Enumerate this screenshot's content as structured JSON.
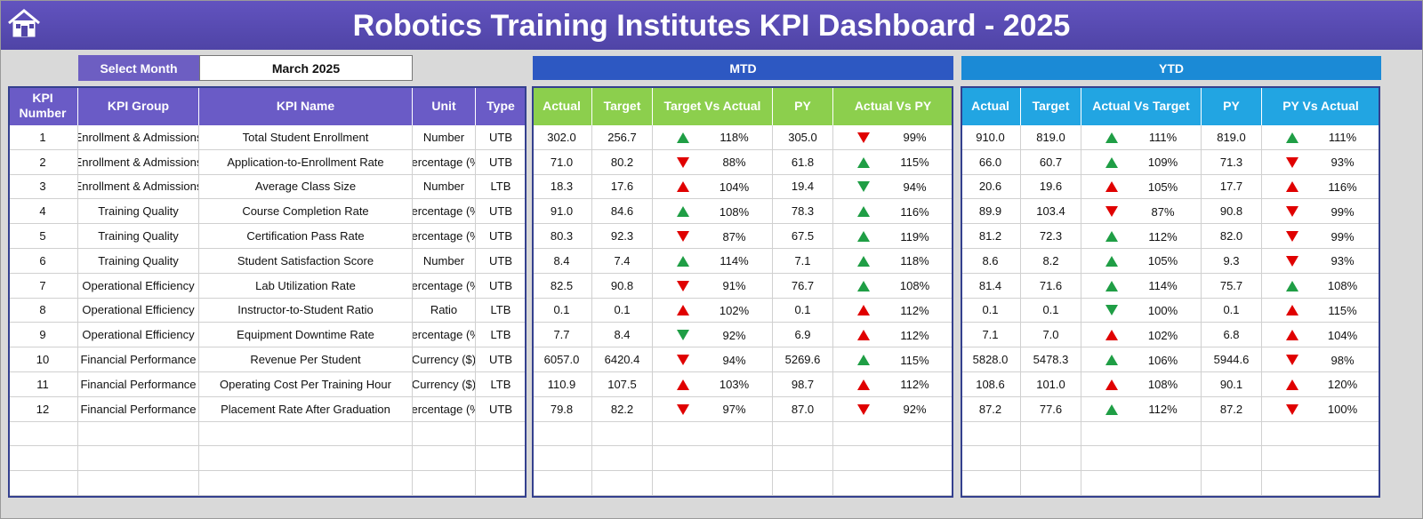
{
  "header": {
    "title": "Robotics Training Institutes KPI Dashboard - 2025"
  },
  "filter": {
    "label": "Select Month",
    "value": "March 2025"
  },
  "sections": {
    "mtd": "MTD",
    "ytd": "YTD"
  },
  "columns": {
    "kpi": [
      "KPI Number",
      "KPI Group",
      "KPI Name",
      "Unit",
      "Type"
    ],
    "mtd": [
      "Actual",
      "Target",
      "Target Vs Actual",
      "PY",
      "Actual Vs PY"
    ],
    "ytd": [
      "Actual",
      "Target",
      "Actual Vs Target",
      "PY",
      "PY Vs Actual"
    ]
  },
  "rows": [
    {
      "cells": [
        "1",
        "Enrollment & Admissions",
        "Total Student Enrollment",
        "Number",
        "UTB"
      ],
      "mtd": [
        "302.0",
        "256.7",
        {
          "label": "118%",
          "arrow": "up",
          "color": "#1f9e45"
        },
        "305.0",
        {
          "label": "99%",
          "arrow": "down",
          "color": "#e00000"
        }
      ],
      "ytd": [
        "910.0",
        "819.0",
        {
          "label": "111%",
          "arrow": "up",
          "color": "#1f9e45"
        },
        "819.0",
        {
          "label": "111%",
          "arrow": "up",
          "color": "#1f9e45"
        }
      ]
    },
    {
      "cells": [
        "2",
        "Enrollment & Admissions",
        "Application-to-Enrollment Rate",
        "Percentage (%)",
        "UTB"
      ],
      "mtd": [
        "71.0",
        "80.2",
        {
          "label": "88%",
          "arrow": "down",
          "color": "#e00000"
        },
        "61.8",
        {
          "label": "115%",
          "arrow": "up",
          "color": "#1f9e45"
        }
      ],
      "ytd": [
        "66.0",
        "60.7",
        {
          "label": "109%",
          "arrow": "up",
          "color": "#1f9e45"
        },
        "71.3",
        {
          "label": "93%",
          "arrow": "down",
          "color": "#e00000"
        }
      ]
    },
    {
      "cells": [
        "3",
        "Enrollment & Admissions",
        "Average Class Size",
        "Number",
        "LTB"
      ],
      "mtd": [
        "18.3",
        "17.6",
        {
          "label": "104%",
          "arrow": "up",
          "color": "#e00000"
        },
        "19.4",
        {
          "label": "94%",
          "arrow": "down",
          "color": "#1f9e45"
        }
      ],
      "ytd": [
        "20.6",
        "19.6",
        {
          "label": "105%",
          "arrow": "up",
          "color": "#e00000"
        },
        "17.7",
        {
          "label": "116%",
          "arrow": "up",
          "color": "#e00000"
        }
      ]
    },
    {
      "cells": [
        "4",
        "Training Quality",
        "Course Completion Rate",
        "Percentage (%)",
        "UTB"
      ],
      "mtd": [
        "91.0",
        "84.6",
        {
          "label": "108%",
          "arrow": "up",
          "color": "#1f9e45"
        },
        "78.3",
        {
          "label": "116%",
          "arrow": "up",
          "color": "#1f9e45"
        }
      ],
      "ytd": [
        "89.9",
        "103.4",
        {
          "label": "87%",
          "arrow": "down",
          "color": "#e00000"
        },
        "90.8",
        {
          "label": "99%",
          "arrow": "down",
          "color": "#e00000"
        }
      ]
    },
    {
      "cells": [
        "5",
        "Training Quality",
        "Certification Pass Rate",
        "Percentage (%)",
        "UTB"
      ],
      "mtd": [
        "80.3",
        "92.3",
        {
          "label": "87%",
          "arrow": "down",
          "color": "#e00000"
        },
        "67.5",
        {
          "label": "119%",
          "arrow": "up",
          "color": "#1f9e45"
        }
      ],
      "ytd": [
        "81.2",
        "72.3",
        {
          "label": "112%",
          "arrow": "up",
          "color": "#1f9e45"
        },
        "82.0",
        {
          "label": "99%",
          "arrow": "down",
          "color": "#e00000"
        }
      ]
    },
    {
      "cells": [
        "6",
        "Training Quality",
        "Student Satisfaction Score",
        "Number",
        "UTB"
      ],
      "mtd": [
        "8.4",
        "7.4",
        {
          "label": "114%",
          "arrow": "up",
          "color": "#1f9e45"
        },
        "7.1",
        {
          "label": "118%",
          "arrow": "up",
          "color": "#1f9e45"
        }
      ],
      "ytd": [
        "8.6",
        "8.2",
        {
          "label": "105%",
          "arrow": "up",
          "color": "#1f9e45"
        },
        "9.3",
        {
          "label": "93%",
          "arrow": "down",
          "color": "#e00000"
        }
      ]
    },
    {
      "cells": [
        "7",
        "Operational Efficiency",
        "Lab Utilization Rate",
        "Percentage (%)",
        "UTB"
      ],
      "mtd": [
        "82.5",
        "90.8",
        {
          "label": "91%",
          "arrow": "down",
          "color": "#e00000"
        },
        "76.7",
        {
          "label": "108%",
          "arrow": "up",
          "color": "#1f9e45"
        }
      ],
      "ytd": [
        "81.4",
        "71.6",
        {
          "label": "114%",
          "arrow": "up",
          "color": "#1f9e45"
        },
        "75.7",
        {
          "label": "108%",
          "arrow": "up",
          "color": "#1f9e45"
        }
      ]
    },
    {
      "cells": [
        "8",
        "Operational Efficiency",
        "Instructor-to-Student Ratio",
        "Ratio",
        "LTB"
      ],
      "mtd": [
        "0.1",
        "0.1",
        {
          "label": "102%",
          "arrow": "up",
          "color": "#e00000"
        },
        "0.1",
        {
          "label": "112%",
          "arrow": "up",
          "color": "#e00000"
        }
      ],
      "ytd": [
        "0.1",
        "0.1",
        {
          "label": "100%",
          "arrow": "down",
          "color": "#1f9e45"
        },
        "0.1",
        {
          "label": "115%",
          "arrow": "up",
          "color": "#e00000"
        }
      ]
    },
    {
      "cells": [
        "9",
        "Operational Efficiency",
        "Equipment Downtime Rate",
        "Percentage (%)",
        "LTB"
      ],
      "mtd": [
        "7.7",
        "8.4",
        {
          "label": "92%",
          "arrow": "down",
          "color": "#1f9e45"
        },
        "6.9",
        {
          "label": "112%",
          "arrow": "up",
          "color": "#e00000"
        }
      ],
      "ytd": [
        "7.1",
        "7.0",
        {
          "label": "102%",
          "arrow": "up",
          "color": "#e00000"
        },
        "6.8",
        {
          "label": "104%",
          "arrow": "up",
          "color": "#e00000"
        }
      ]
    },
    {
      "cells": [
        "10",
        "Financial Performance",
        "Revenue Per Student",
        "Currency ($)",
        "UTB"
      ],
      "mtd": [
        "6057.0",
        "6420.4",
        {
          "label": "94%",
          "arrow": "down",
          "color": "#e00000"
        },
        "5269.6",
        {
          "label": "115%",
          "arrow": "up",
          "color": "#1f9e45"
        }
      ],
      "ytd": [
        "5828.0",
        "5478.3",
        {
          "label": "106%",
          "arrow": "up",
          "color": "#1f9e45"
        },
        "5944.6",
        {
          "label": "98%",
          "arrow": "down",
          "color": "#e00000"
        }
      ]
    },
    {
      "cells": [
        "11",
        "Financial Performance",
        "Operating Cost Per Training Hour",
        "Currency ($)",
        "LTB"
      ],
      "mtd": [
        "110.9",
        "107.5",
        {
          "label": "103%",
          "arrow": "up",
          "color": "#e00000"
        },
        "98.7",
        {
          "label": "112%",
          "arrow": "up",
          "color": "#e00000"
        }
      ],
      "ytd": [
        "108.6",
        "101.0",
        {
          "label": "108%",
          "arrow": "up",
          "color": "#e00000"
        },
        "90.1",
        {
          "label": "120%",
          "arrow": "up",
          "color": "#e00000"
        }
      ]
    },
    {
      "cells": [
        "12",
        "Financial Performance",
        "Placement Rate After Graduation",
        "Percentage (%)",
        "UTB"
      ],
      "mtd": [
        "79.8",
        "82.2",
        {
          "label": "97%",
          "arrow": "down",
          "color": "#e00000"
        },
        "87.0",
        {
          "label": "92%",
          "arrow": "down",
          "color": "#e00000"
        }
      ],
      "ytd": [
        "87.2",
        "77.6",
        {
          "label": "112%",
          "arrow": "up",
          "color": "#1f9e45"
        },
        "87.2",
        {
          "label": "100%",
          "arrow": "down",
          "color": "#e00000"
        }
      ]
    }
  ]
}
